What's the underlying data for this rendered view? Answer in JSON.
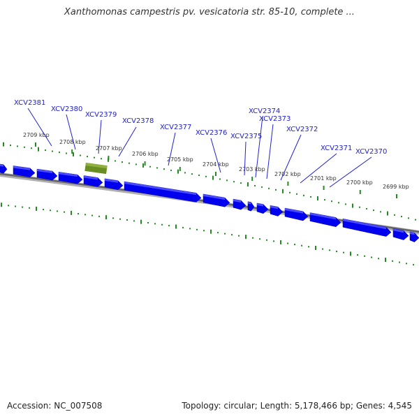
{
  "header": {
    "title": "Xanthomonas campestris pv. vesicatoria str. 85-10, complete ..."
  },
  "footer": {
    "accession": "Accession: NC_007508",
    "summary": "Topology: circular; Length: 5,178,466 bp; Genes: 4,545"
  },
  "colors": {
    "gene_label": "#2020d0",
    "gene_fill": "#0000ee",
    "gene_highlight": "#6b8e23",
    "backbone": "#777777",
    "tick": "#228b22"
  },
  "ticks": [
    {
      "label": "2709 kbp"
    },
    {
      "label": "2708 kbp"
    },
    {
      "label": "2707 kbp"
    },
    {
      "label": "2706 kbp"
    },
    {
      "label": "2705 kbp"
    },
    {
      "label": "2704 kbp"
    },
    {
      "label": "2703 kbp"
    },
    {
      "label": "2702 kbp"
    },
    {
      "label": "2701 kbp"
    },
    {
      "label": "2700 kbp"
    },
    {
      "label": "2699 kbp"
    }
  ],
  "gene_labels": [
    {
      "name": "XCV2381"
    },
    {
      "name": "XCV2380"
    },
    {
      "name": "XCV2379"
    },
    {
      "name": "XCV2378"
    },
    {
      "name": "XCV2377"
    },
    {
      "name": "XCV2376"
    },
    {
      "name": "XCV2375"
    },
    {
      "name": "XCV2374"
    },
    {
      "name": "XCV2373"
    },
    {
      "name": "XCV2372"
    },
    {
      "name": "XCV2371"
    },
    {
      "name": "XCV2370"
    }
  ]
}
